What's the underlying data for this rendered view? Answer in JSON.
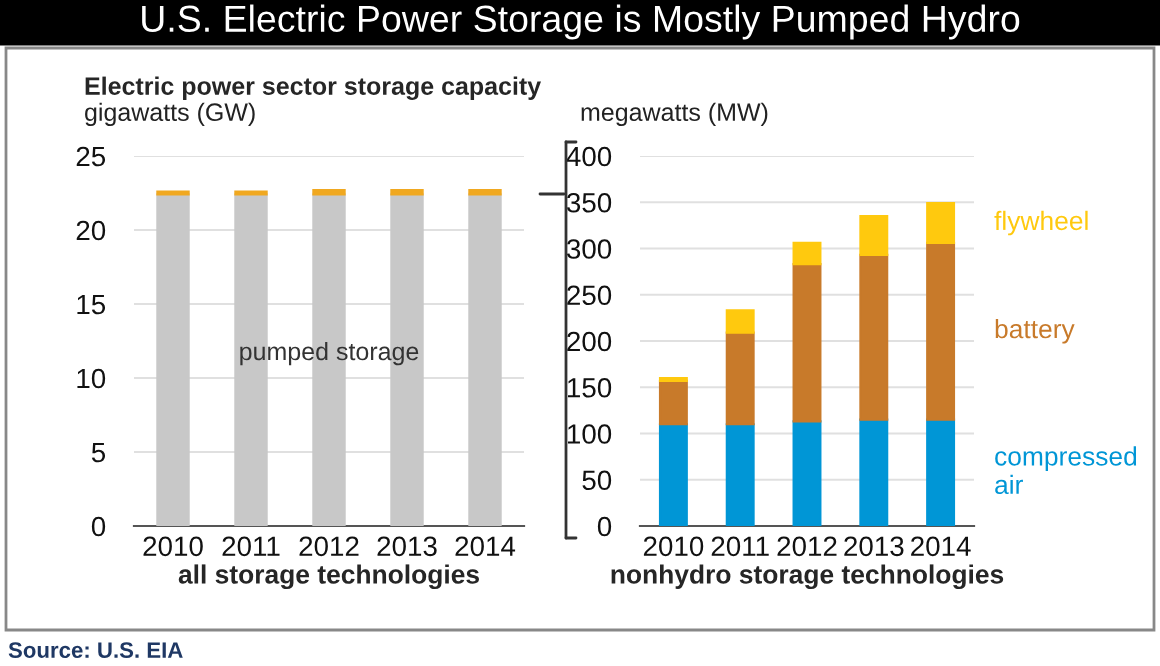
{
  "chart_data": [
    {
      "type": "bar",
      "title": "U.S. Electric Power Storage is Mostly Pumped Hydro",
      "subtitle": "Electric power sector storage capacity",
      "ylabel": "gigawatts (GW)",
      "xlabel": "all storage technologies",
      "stacked": true,
      "categories": [
        "2010",
        "2011",
        "2012",
        "2013",
        "2014"
      ],
      "series": [
        {
          "name": "pumped storage",
          "color": "#c8c8c8",
          "values": [
            22.4,
            22.4,
            22.4,
            22.4,
            22.4
          ]
        },
        {
          "color": "#f0a820",
          "values": [
            0.2,
            0.2,
            0.3,
            0.3,
            0.3
          ]
        }
      ],
      "ylim": [
        0,
        25
      ],
      "yticks": [
        0,
        5,
        10,
        15,
        20,
        25
      ],
      "grid": "y",
      "annotations": [
        "Source: U.S. EIA"
      ]
    },
    {
      "type": "bar",
      "ylabel": "megawatts (MW)",
      "xlabel": "nonhydro storage technologies",
      "stacked": true,
      "categories": [
        "2010",
        "2011",
        "2012",
        "2013",
        "2014"
      ],
      "series": [
        {
          "name": "compressed air",
          "color": "#0096d6",
          "values": [
            110,
            110,
            113,
            115,
            115
          ]
        },
        {
          "name": "battery",
          "color": "#c87a2a",
          "values": [
            47,
            99,
            170,
            178,
            191
          ]
        },
        {
          "name": "flywheel",
          "color": "#ffc90e",
          "values": [
            3,
            24,
            23,
            42,
            43
          ]
        }
      ],
      "ylim": [
        0,
        400
      ],
      "yticks": [
        0,
        50,
        100,
        150,
        200,
        250,
        300,
        350,
        400
      ],
      "grid": "y"
    }
  ]
}
